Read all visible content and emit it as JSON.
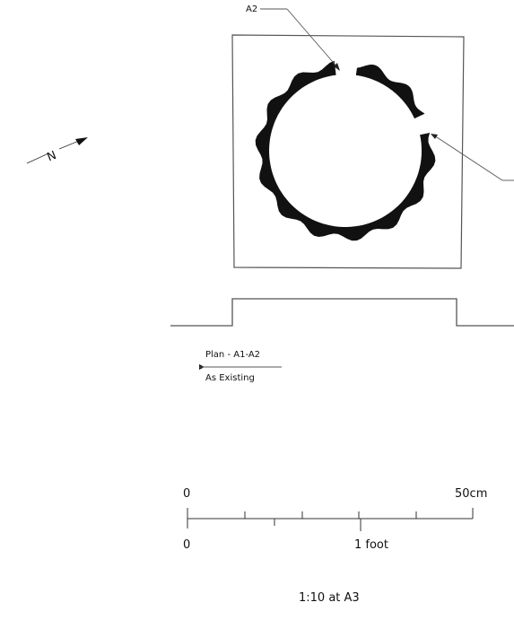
{
  "callouts": {
    "a2_label": "A2"
  },
  "north_arrow": {
    "letter": "N"
  },
  "plan_title": {
    "title": "Plan - A1-A2",
    "subtitle": "As Existing"
  },
  "scale_bar": {
    "metric_start": "0",
    "metric_end": "50cm",
    "imperial_start": "0",
    "imperial_end": "1 foot"
  },
  "scale_note": "1:10 at A3",
  "colors": {
    "ink": "#111111",
    "line": "#555555"
  }
}
